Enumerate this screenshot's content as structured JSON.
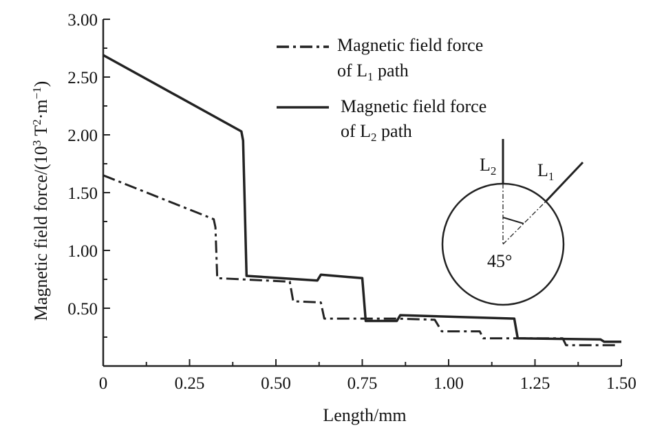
{
  "chart_data": {
    "type": "line",
    "title": "",
    "xlabel": "Length/mm",
    "ylabel": {
      "base": "Magnetic field  force/(10",
      "exp1": "3",
      "mid": " T",
      "exp2": "2",
      "mid2": "·m",
      "exp3": "−1",
      "end": ")"
    },
    "xlim": [
      0,
      1.5
    ],
    "ylim": [
      0,
      3.0
    ],
    "xticks": [
      {
        "value": 0,
        "label": "0"
      },
      {
        "value": 0.25,
        "label": "0.25"
      },
      {
        "value": 0.5,
        "label": "0.50"
      },
      {
        "value": 0.75,
        "label": "0.75"
      },
      {
        "value": 1.0,
        "label": "1.00"
      },
      {
        "value": 1.25,
        "label": "1.25"
      },
      {
        "value": 1.5,
        "label": "1.50"
      }
    ],
    "yticks": [
      {
        "value": 0.5,
        "label": "0.50"
      },
      {
        "value": 1.0,
        "label": "1.00"
      },
      {
        "value": 1.5,
        "label": "1.50"
      },
      {
        "value": 2.0,
        "label": "2.00"
      },
      {
        "value": 2.5,
        "label": "2.50"
      },
      {
        "value": 3.0,
        "label": "3.00"
      }
    ],
    "grid": false,
    "legend_position": "top-right",
    "series": [
      {
        "name_main": "Magnetic field force",
        "name_prefix": "of L",
        "name_sub": "1",
        "name_suffix": " path",
        "style": "dashdot",
        "points": [
          [
            0,
            1.65
          ],
          [
            0.32,
            1.27
          ],
          [
            0.325,
            1.2
          ],
          [
            0.33,
            0.76
          ],
          [
            0.54,
            0.73
          ],
          [
            0.55,
            0.56
          ],
          [
            0.63,
            0.55
          ],
          [
            0.64,
            0.41
          ],
          [
            0.85,
            0.41
          ],
          [
            0.96,
            0.4
          ],
          [
            0.98,
            0.3
          ],
          [
            1.09,
            0.3
          ],
          [
            1.1,
            0.24
          ],
          [
            1.33,
            0.24
          ],
          [
            1.34,
            0.18
          ],
          [
            1.49,
            0.18
          ]
        ]
      },
      {
        "name_main": "Magnetic field force",
        "name_prefix": "of L",
        "name_sub": "2",
        "name_suffix": " path",
        "style": "solid",
        "points": [
          [
            0,
            2.69
          ],
          [
            0.4,
            2.03
          ],
          [
            0.405,
            1.95
          ],
          [
            0.415,
            0.78
          ],
          [
            0.62,
            0.74
          ],
          [
            0.63,
            0.79
          ],
          [
            0.75,
            0.76
          ],
          [
            0.76,
            0.39
          ],
          [
            0.85,
            0.39
          ],
          [
            0.86,
            0.44
          ],
          [
            1.19,
            0.41
          ],
          [
            1.2,
            0.24
          ],
          [
            1.44,
            0.23
          ],
          [
            1.45,
            0.21
          ],
          [
            1.5,
            0.21
          ]
        ]
      }
    ],
    "inset": {
      "label_L2_main": "L",
      "label_L2_sub": "2",
      "label_L1_main": "L",
      "label_L1_sub": "1",
      "angle_label": "45°"
    }
  }
}
